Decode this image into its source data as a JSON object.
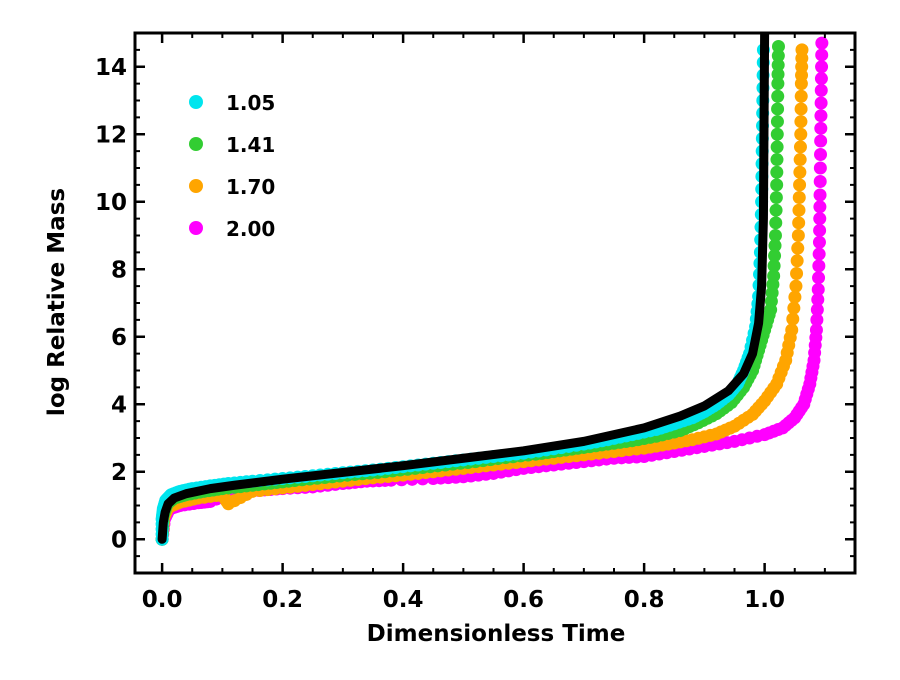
{
  "chart_data": {
    "type": "scatter",
    "title": "",
    "xlabel": "Dimensionless Time",
    "ylabel": "log Relative Mass",
    "xlim": [
      -0.045,
      1.15
    ],
    "ylim": [
      -1.0,
      15.0
    ],
    "xticks": [
      0.0,
      0.2,
      0.4,
      0.6,
      0.8,
      1.0
    ],
    "xtick_labels": [
      "0.0",
      "0.2",
      "0.4",
      "0.6",
      "0.8",
      "1.0"
    ],
    "yticks": [
      0,
      2,
      4,
      6,
      8,
      10,
      12,
      14
    ],
    "ytick_labels": [
      "0",
      "2",
      "4",
      "6",
      "8",
      "10",
      "12",
      "14"
    ],
    "grid": false,
    "legend_position": "top-left",
    "colors": {
      "reference_line": "#000000",
      "axes": "#000000"
    },
    "reference_curve": {
      "name": "reference",
      "color": "#000000",
      "points": [
        [
          0.0,
          0.0
        ],
        [
          0.002,
          0.5
        ],
        [
          0.005,
          0.8
        ],
        [
          0.01,
          1.05
        ],
        [
          0.02,
          1.22
        ],
        [
          0.04,
          1.35
        ],
        [
          0.08,
          1.5
        ],
        [
          0.12,
          1.6
        ],
        [
          0.2,
          1.78
        ],
        [
          0.3,
          1.98
        ],
        [
          0.4,
          2.18
        ],
        [
          0.5,
          2.4
        ],
        [
          0.6,
          2.62
        ],
        [
          0.7,
          2.9
        ],
        [
          0.8,
          3.3
        ],
        [
          0.86,
          3.65
        ],
        [
          0.9,
          3.95
        ],
        [
          0.94,
          4.4
        ],
        [
          0.965,
          4.9
        ],
        [
          0.98,
          5.5
        ],
        [
          0.99,
          6.4
        ],
        [
          0.995,
          7.5
        ],
        [
          0.998,
          9.5
        ],
        [
          1.0,
          15.0
        ]
      ]
    },
    "series": [
      {
        "name": "1.05",
        "color": "#00e5ee",
        "points": [
          [
            0.0,
            0.0
          ],
          [
            0.0,
            0.6
          ],
          [
            0.002,
            0.9
          ],
          [
            0.006,
            1.15
          ],
          [
            0.015,
            1.32
          ],
          [
            0.03,
            1.42
          ],
          [
            0.05,
            1.5
          ],
          [
            0.08,
            1.58
          ],
          [
            0.11,
            1.65
          ],
          [
            0.15,
            1.72
          ],
          [
            0.2,
            1.8
          ],
          [
            0.25,
            1.88
          ],
          [
            0.3,
            1.97
          ],
          [
            0.35,
            2.05
          ],
          [
            0.4,
            2.15
          ],
          [
            0.45,
            2.25
          ],
          [
            0.5,
            2.35
          ],
          [
            0.55,
            2.45
          ],
          [
            0.6,
            2.55
          ],
          [
            0.65,
            2.68
          ],
          [
            0.7,
            2.82
          ],
          [
            0.74,
            2.95
          ],
          [
            0.78,
            3.1
          ],
          [
            0.82,
            3.25
          ],
          [
            0.85,
            3.42
          ],
          [
            0.88,
            3.6
          ],
          [
            0.9,
            3.78
          ],
          [
            0.92,
            4.0
          ],
          [
            0.94,
            4.28
          ],
          [
            0.955,
            4.6
          ],
          [
            0.965,
            5.0
          ],
          [
            0.975,
            5.5
          ],
          [
            0.985,
            6.3
          ],
          [
            0.99,
            7.2
          ],
          [
            0.993,
            8.5
          ],
          [
            0.995,
            10.0
          ],
          [
            0.996,
            11.5
          ],
          [
            0.997,
            13.0
          ],
          [
            0.998,
            14.5
          ]
        ]
      },
      {
        "name": "1.41",
        "color": "#32cd32",
        "points": [
          [
            0.0,
            0.0
          ],
          [
            0.002,
            0.7
          ],
          [
            0.008,
            1.05
          ],
          [
            0.02,
            1.22
          ],
          [
            0.04,
            1.32
          ],
          [
            0.07,
            1.42
          ],
          [
            0.1,
            1.5
          ],
          [
            0.14,
            1.58
          ],
          [
            0.18,
            1.66
          ],
          [
            0.22,
            1.74
          ],
          [
            0.27,
            1.83
          ],
          [
            0.32,
            1.92
          ],
          [
            0.37,
            2.0
          ],
          [
            0.42,
            2.1
          ],
          [
            0.47,
            2.2
          ],
          [
            0.52,
            2.3
          ],
          [
            0.57,
            2.42
          ],
          [
            0.62,
            2.52
          ],
          [
            0.66,
            2.62
          ],
          [
            0.7,
            2.72
          ],
          [
            0.74,
            2.82
          ],
          [
            0.78,
            2.92
          ],
          [
            0.82,
            3.05
          ],
          [
            0.86,
            3.22
          ],
          [
            0.89,
            3.45
          ],
          [
            0.92,
            3.72
          ],
          [
            0.945,
            4.05
          ],
          [
            0.965,
            4.5
          ],
          [
            0.98,
            5.0
          ],
          [
            0.99,
            5.6
          ],
          [
            1.0,
            6.2
          ],
          [
            1.01,
            6.8
          ],
          [
            1.015,
            7.8
          ],
          [
            1.018,
            9.0
          ],
          [
            1.02,
            10.5
          ],
          [
            1.021,
            12.0
          ],
          [
            1.022,
            13.5
          ],
          [
            1.023,
            14.6
          ]
        ]
      },
      {
        "name": "1.70",
        "color": "#ffa500",
        "points": [
          [
            0.0,
            0.0
          ],
          [
            0.003,
            0.65
          ],
          [
            0.01,
            0.95
          ],
          [
            0.03,
            1.1
          ],
          [
            0.06,
            1.22
          ],
          [
            0.1,
            1.32
          ],
          [
            0.11,
            1.05
          ],
          [
            0.15,
            1.42
          ],
          [
            0.2,
            1.52
          ],
          [
            0.25,
            1.62
          ],
          [
            0.3,
            1.72
          ],
          [
            0.35,
            1.82
          ],
          [
            0.4,
            1.9
          ],
          [
            0.45,
            2.0
          ],
          [
            0.5,
            2.1
          ],
          [
            0.55,
            2.2
          ],
          [
            0.6,
            2.3
          ],
          [
            0.65,
            2.4
          ],
          [
            0.7,
            2.5
          ],
          [
            0.75,
            2.6
          ],
          [
            0.8,
            2.7
          ],
          [
            0.84,
            2.82
          ],
          [
            0.88,
            2.95
          ],
          [
            0.92,
            3.12
          ],
          [
            0.95,
            3.35
          ],
          [
            0.98,
            3.7
          ],
          [
            1.0,
            4.1
          ],
          [
            1.02,
            4.6
          ],
          [
            1.035,
            5.3
          ],
          [
            1.045,
            6.2
          ],
          [
            1.052,
            7.5
          ],
          [
            1.056,
            9.0
          ],
          [
            1.058,
            10.5
          ],
          [
            1.06,
            12.0
          ],
          [
            1.061,
            13.5
          ],
          [
            1.062,
            14.5
          ]
        ]
      },
      {
        "name": "2.00",
        "color": "#ff00ff",
        "points": [
          [
            0.0,
            0.0
          ],
          [
            0.004,
            0.6
          ],
          [
            0.012,
            0.9
          ],
          [
            0.03,
            1.0
          ],
          [
            0.06,
            1.08
          ],
          [
            0.08,
            1.12
          ],
          [
            0.12,
            1.4
          ],
          [
            0.16,
            1.45
          ],
          [
            0.2,
            1.5
          ],
          [
            0.25,
            1.55
          ],
          [
            0.3,
            1.65
          ],
          [
            0.34,
            1.72
          ],
          [
            0.38,
            1.75
          ],
          [
            0.45,
            1.8
          ],
          [
            0.5,
            1.85
          ],
          [
            0.55,
            1.95
          ],
          [
            0.6,
            2.1
          ],
          [
            0.65,
            2.2
          ],
          [
            0.7,
            2.3
          ],
          [
            0.75,
            2.4
          ],
          [
            0.8,
            2.45
          ],
          [
            0.85,
            2.6
          ],
          [
            0.9,
            2.75
          ],
          [
            0.95,
            2.9
          ],
          [
            1.0,
            3.1
          ],
          [
            1.03,
            3.3
          ],
          [
            1.05,
            3.6
          ],
          [
            1.065,
            4.0
          ],
          [
            1.075,
            4.6
          ],
          [
            1.082,
            5.3
          ],
          [
            1.086,
            6.2
          ],
          [
            1.089,
            7.4
          ],
          [
            1.091,
            8.8
          ],
          [
            1.092,
            10.2
          ],
          [
            1.093,
            11.8
          ],
          [
            1.094,
            13.3
          ],
          [
            1.095,
            14.7
          ]
        ]
      }
    ]
  }
}
